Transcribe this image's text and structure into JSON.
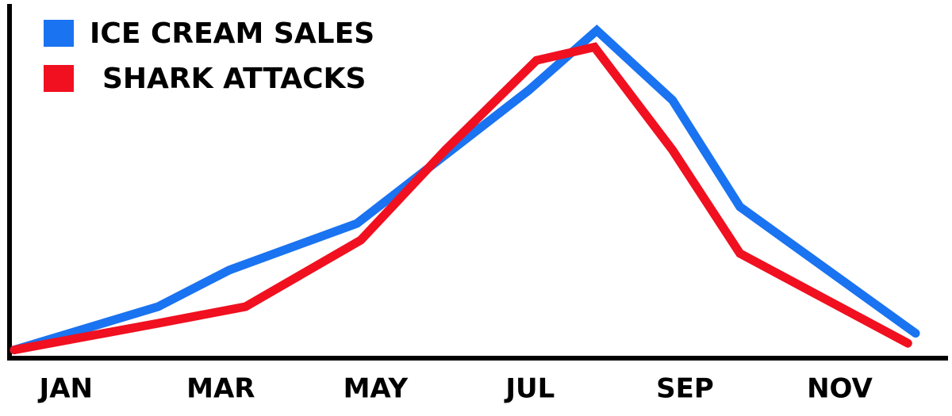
{
  "chart_data": {
    "type": "line",
    "legend": "top-left",
    "xlim": [
      0.3,
      12.4
    ],
    "ylim": [
      0,
      100
    ],
    "xticks": [
      {
        "value": 1,
        "label": "JAN"
      },
      {
        "value": 3,
        "label": "MAR"
      },
      {
        "value": 5,
        "label": "MAY"
      },
      {
        "value": 7,
        "label": "JUL"
      },
      {
        "value": 9,
        "label": "SEP"
      },
      {
        "value": 11,
        "label": "NOV"
      }
    ],
    "series": [
      {
        "name": "ICE CREAM SALES",
        "color": "#1a73f0",
        "x": [
          0.33,
          2.19,
          3.11,
          4.76,
          6.98,
          7.86,
          8.84,
          9.71,
          11.98
        ],
        "values": [
          2,
          15,
          26,
          40,
          80,
          98,
          77,
          45,
          7
        ]
      },
      {
        "name": "SHARK ATTACKS",
        "color": "#f01020",
        "x": [
          0.33,
          2.19,
          3.32,
          4.81,
          5.9,
          7.08,
          7.83,
          8.84,
          9.71,
          11.88
        ],
        "values": [
          2,
          10,
          15,
          35,
          62,
          89,
          93,
          62,
          31,
          4
        ]
      }
    ]
  }
}
